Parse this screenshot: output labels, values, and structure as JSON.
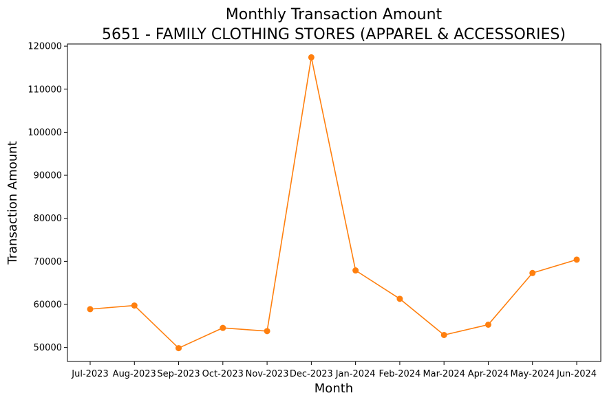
{
  "chart_data": {
    "type": "line",
    "title": "Monthly Transaction Amount",
    "subtitle": "5651 - FAMILY CLOTHING STORES (APPAREL & ACCESSORIES)",
    "xlabel": "Month",
    "ylabel": "Transaction Amount",
    "categories": [
      "Jul-2023",
      "Aug-2023",
      "Sep-2023",
      "Oct-2023",
      "Nov-2023",
      "Dec-2023",
      "Jan-2024",
      "Feb-2024",
      "Mar-2024",
      "Apr-2024",
      "May-2024",
      "Jun-2024"
    ],
    "series": [
      {
        "values": [
          58900,
          59750,
          49850,
          54550,
          53800,
          117400,
          67900,
          61300,
          52900,
          55300,
          67300,
          70400
        ],
        "color": "#ff7f0e",
        "marker": "circle"
      }
    ],
    "yticks": [
      50000,
      60000,
      70000,
      80000,
      90000,
      100000,
      110000,
      120000
    ],
    "ylim": [
      46750,
      120500
    ],
    "grid": false,
    "legend": "none"
  }
}
